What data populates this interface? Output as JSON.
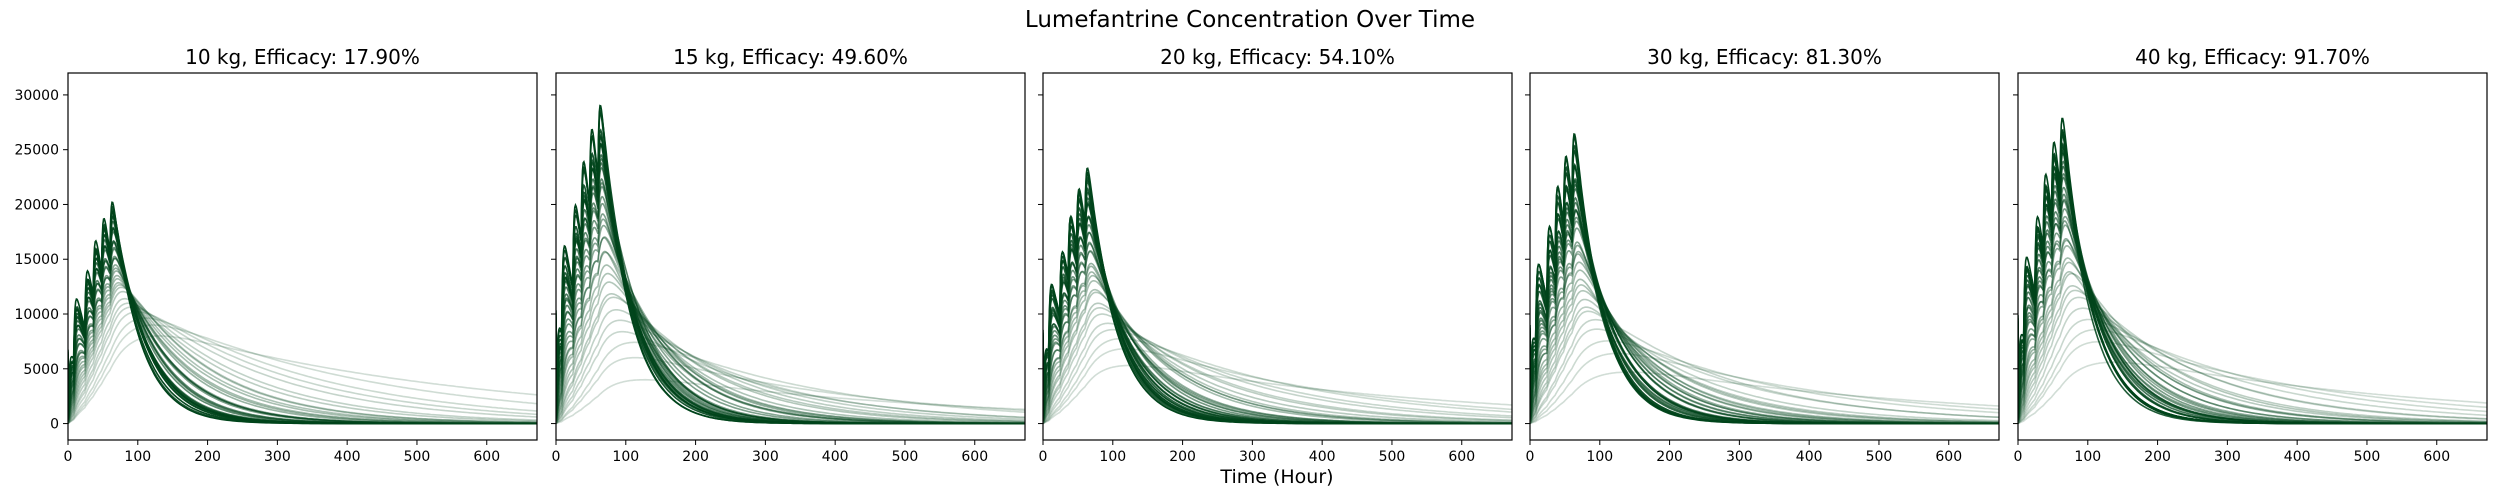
{
  "figure": {
    "title": "Lumefantrine Concentration Over Time",
    "xlabel": "Time (Hour)"
  },
  "chart_data": {
    "type": "line",
    "xlim": [
      0,
      672
    ],
    "ylim": [
      -1500,
      32000
    ],
    "x_ticks": [
      0,
      100,
      200,
      300,
      400,
      500,
      600
    ],
    "y_ticks": [
      0,
      5000,
      10000,
      15000,
      20000,
      25000,
      30000
    ],
    "grid": false,
    "line_color": "#00441b",
    "dose_times_hours": [
      0,
      8,
      24,
      36,
      48,
      60
    ],
    "panels": [
      {
        "title": "10 kg, Efficacy: 17.90%",
        "weight_kg": 10,
        "efficacy_percent": 17.9,
        "max_peak": 20500,
        "min_peak": 8000,
        "start_value": 7500
      },
      {
        "title": "15 kg, Efficacy: 49.60%",
        "weight_kg": 15,
        "efficacy_percent": 49.6,
        "max_peak": 30300,
        "min_peak": 4000,
        "start_value": 11500
      },
      {
        "title": "20 kg, Efficacy: 54.10%",
        "weight_kg": 20,
        "efficacy_percent": 54.1,
        "max_peak": 24300,
        "min_peak": 5300,
        "start_value": 9500
      },
      {
        "title": "30 kg, Efficacy: 81.30%",
        "weight_kg": 30,
        "efficacy_percent": 81.3,
        "max_peak": 26800,
        "min_peak": 4700,
        "start_value": 10000
      },
      {
        "title": "40 kg, Efficacy: 91.70%",
        "weight_kg": 40,
        "efficacy_percent": 91.7,
        "max_peak": 28800,
        "min_peak": 5600,
        "start_value": 11000
      }
    ]
  }
}
